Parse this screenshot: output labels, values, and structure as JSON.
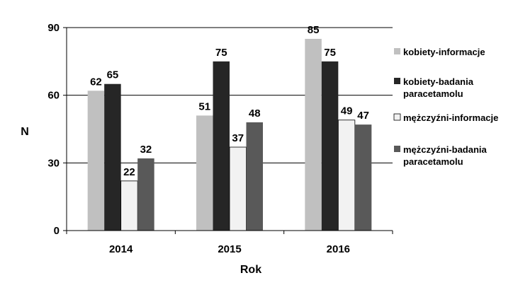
{
  "chart_data": {
    "type": "bar",
    "categories": [
      "2014",
      "2015",
      "2016"
    ],
    "series": [
      {
        "name": "kobiety-informacje",
        "values": [
          62,
          51,
          85
        ],
        "color": "#c0c0c0"
      },
      {
        "name": "kobiety-badania paracetamolu",
        "values": [
          65,
          75,
          75
        ],
        "color": "#262626"
      },
      {
        "name": "mężczyźni-informacje",
        "values": [
          22,
          37,
          49
        ],
        "color": "#f2f2f2"
      },
      {
        "name": "mężczyźni-badania paracetamolu",
        "values": [
          32,
          48,
          47
        ],
        "color": "#595959"
      }
    ],
    "xlabel": "Rok",
    "ylabel": "N",
    "ylim": [
      0,
      90
    ],
    "yticks": [
      "0",
      "30",
      "60",
      "90"
    ],
    "grid": true,
    "legend": "right"
  }
}
